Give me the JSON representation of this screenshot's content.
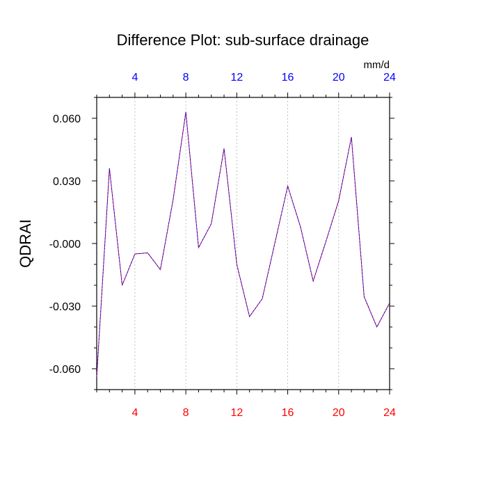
{
  "chart_data": {
    "type": "line",
    "title": "Difference Plot: sub-surface drainage",
    "units_label": "mm/d",
    "ylabel": "QDRAI",
    "xlim": [
      1,
      24
    ],
    "ylim": [
      -0.07,
      0.07
    ],
    "x_ticks": [
      4,
      8,
      12,
      16,
      20,
      24
    ],
    "x_ticks_top": [
      4,
      8,
      12,
      16,
      20,
      24
    ],
    "y_ticks": [
      0.06,
      0.03,
      0.0,
      -0.03,
      -0.06
    ],
    "y_tick_labels": [
      "0.060",
      "0.030",
      "-0.000",
      "-0.030",
      "-0.060"
    ],
    "grid": "vertical dotted at labeled x ticks",
    "colors": {
      "bottom_tick_labels": "#ff0000",
      "top_tick_labels": "#0000ff",
      "series_a": "#ff0000",
      "series_b": "#0000ff"
    },
    "x": [
      1,
      2,
      3,
      4,
      5,
      6,
      7,
      8,
      9,
      10,
      11,
      12,
      13,
      14,
      15,
      16,
      17,
      18,
      19,
      20,
      21,
      22,
      23,
      24
    ],
    "series": [
      {
        "values": [
          -0.064,
          0.036,
          -0.02,
          -0.005,
          -0.0045,
          -0.0125,
          0.021,
          0.063,
          -0.002,
          0.0095,
          0.0455,
          -0.01,
          -0.035,
          -0.0265,
          0.0005,
          0.0275,
          0.008,
          -0.018,
          0.001,
          0.0205,
          0.051,
          -0.0255,
          -0.04,
          -0.0285
        ]
      },
      {
        "values": [
          -0.064,
          0.036,
          -0.02,
          -0.005,
          -0.0045,
          -0.0125,
          0.021,
          0.063,
          -0.002,
          0.0095,
          0.0455,
          -0.01,
          -0.035,
          -0.0265,
          0.0005,
          0.0275,
          0.008,
          -0.018,
          0.001,
          0.0205,
          0.051,
          -0.0255,
          -0.04,
          -0.0285
        ]
      }
    ]
  }
}
